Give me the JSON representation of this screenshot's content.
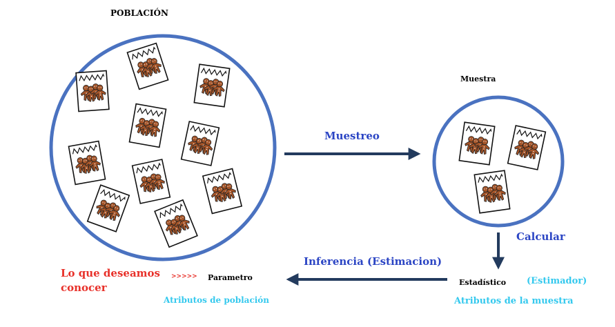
{
  "population": {
    "title": "POBLACIÓN",
    "packet_count": 10
  },
  "sample": {
    "title": "Muestra",
    "packet_count": 3
  },
  "arrows": {
    "sampling": "Muestreo",
    "calculate": "Calcular",
    "inference": "Inferencia  (Estimacion)"
  },
  "left_note": {
    "line1": "Lo que deseamos",
    "line2": "conocer",
    "arrows": ">>>>>"
  },
  "parameter": {
    "label": "Parametro",
    "attributes": "Atributos de población"
  },
  "statistic": {
    "label": "Estadístico",
    "alias": "(Estimador)",
    "attributes": "Atributos  de  la muestra"
  },
  "colors": {
    "circle": "#4a72c0",
    "arrow": "#233b5e",
    "blue_text": "#2b45c4",
    "red_text": "#e8312a",
    "cyan_text": "#35c9ee",
    "cookie": "#a45428"
  },
  "icons": {
    "packet": "gingerbread-cookie-packet-icon"
  }
}
